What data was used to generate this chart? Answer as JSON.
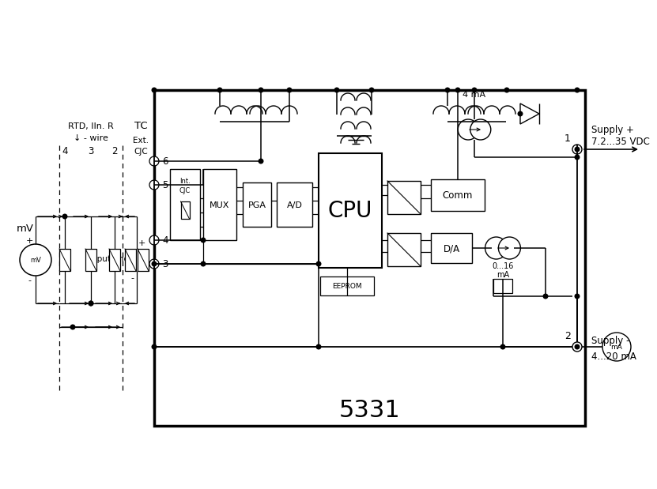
{
  "bg": "#ffffff",
  "title": "5331",
  "supply_plus": "Supply +\n7.2...35 VDC",
  "supply_minus": "Supply -",
  "ma_label": "4...20 mA",
  "node1": "1",
  "node2": "2",
  "mV_label": "mV",
  "rtd_label": "RTD, IIn. R",
  "wire_label": "↓ - wire",
  "TC_label": "TC",
  "ext_cjc": "Ext.\nCJC",
  "int_cjc_line1": "Int.",
  "int_cjc_line2": "CJC",
  "mux": "MUX",
  "pga": "PGA",
  "ad": "A/D",
  "cpu": "CPU",
  "comm": "Comm",
  "da": "D/A",
  "eeprom": "EEPROM",
  "ma4": "4 mA",
  "ma016_line1": "0...16",
  "ma016_line2": "mA",
  "input_gnd": "Input gnd.",
  "plus": "+",
  "minus": "-",
  "num4": "4",
  "num3": "3",
  "num2": "2",
  "term6": "6",
  "term5": "5",
  "term4": "4",
  "term3": "3"
}
